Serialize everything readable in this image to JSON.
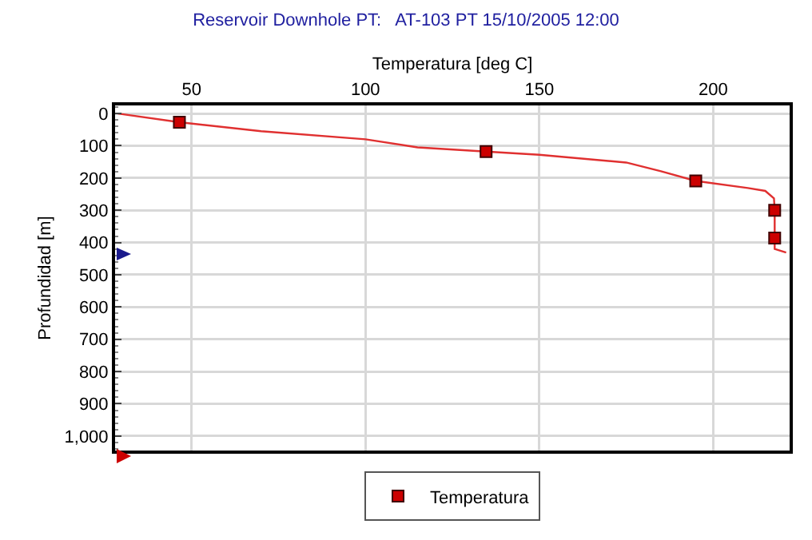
{
  "chart_data": {
    "type": "line",
    "title": "Reservoir Downhole PT:   AT-103 PT 15/10/2005 12:00",
    "xlabel": "Temperatura [deg C]",
    "ylabel": "Profundidad [m]",
    "xlim": [
      28,
      222
    ],
    "xticks": [
      50,
      100,
      150,
      200
    ],
    "ylim": [
      1045,
      -25
    ],
    "yticks": [
      0,
      100,
      200,
      300,
      400,
      500,
      600,
      700,
      800,
      900,
      {
        "value": 1000,
        "label": "1,000"
      }
    ],
    "grid": true,
    "legend": "bottom",
    "line_style": "solid",
    "series": [
      {
        "marker": "none",
        "color": "#e03030",
        "x": [
          28.8,
          46.5,
          70,
          100,
          115,
          134.7,
          150,
          175,
          185,
          195,
          210,
          215,
          217.5,
          217.7,
          217.7,
          217.7,
          221
        ],
        "values": [
          0,
          27,
          55,
          80,
          105,
          118,
          128,
          152,
          179,
          209,
          231,
          240,
          263,
          300,
          386,
          420,
          431
        ]
      },
      {
        "type": "scatter",
        "marker": "square",
        "name": "Temperatura",
        "color": "#cc0000",
        "x": [
          46.5,
          134.7,
          195,
          217.7,
          217.7
        ],
        "values": [
          27,
          118,
          209,
          300,
          386
        ]
      }
    ]
  }
}
